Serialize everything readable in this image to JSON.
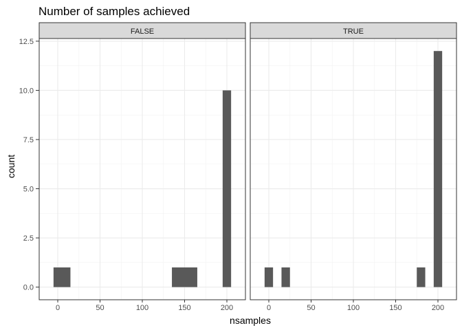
{
  "chart_data": {
    "type": "bar",
    "title": "Number of samples achieved",
    "xlabel": "nsamples",
    "ylabel": "count",
    "xlim": [
      -10,
      210
    ],
    "ylim": [
      0,
      12.5
    ],
    "x_ticks": [
      0,
      50,
      100,
      150,
      200
    ],
    "y_ticks": [
      0.0,
      2.5,
      5.0,
      7.5,
      10.0,
      12.5
    ],
    "x_tick_labels": [
      "0",
      "50",
      "100",
      "150",
      "200"
    ],
    "y_tick_labels": [
      "0.0",
      "2.5",
      "5.0",
      "7.5",
      "10.0",
      "12.5"
    ],
    "grid": true,
    "bar_color": "#595959",
    "strip_color": "#d9d9d9",
    "facets": [
      {
        "label": "FALSE",
        "bars": [
          {
            "x_start": -5,
            "x_end": 15,
            "count": 1
          },
          {
            "x_start": 135,
            "x_end": 165,
            "count": 1
          },
          {
            "x_start": 195,
            "x_end": 205,
            "count": 10
          }
        ]
      },
      {
        "label": "TRUE",
        "bars": [
          {
            "x_start": -5,
            "x_end": 5,
            "count": 1
          },
          {
            "x_start": 15,
            "x_end": 25,
            "count": 1
          },
          {
            "x_start": 175,
            "x_end": 185,
            "count": 1
          },
          {
            "x_start": 195,
            "x_end": 205,
            "count": 12
          }
        ]
      }
    ]
  }
}
